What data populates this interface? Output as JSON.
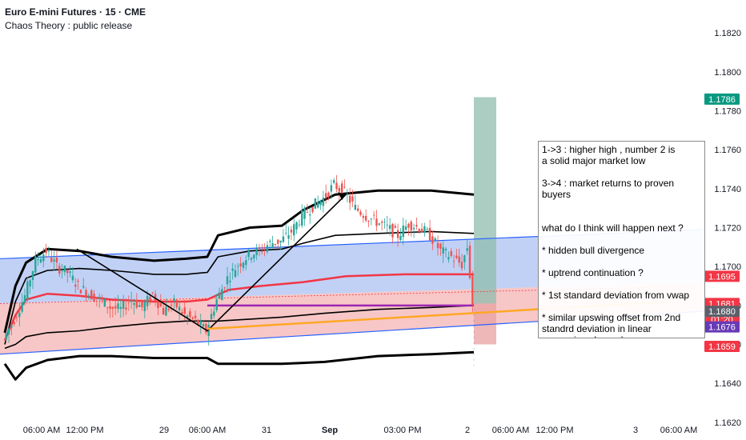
{
  "header": {
    "title": "Euro E-mini Futures · 15 · CME",
    "subtitle": "Chaos Theory : public release"
  },
  "colors": {
    "upper_channel_fill": "#9fb8f0",
    "lower_channel_fill": "#f2a9a9",
    "channel_line": "#2962ff",
    "vwap_red": "#f23645",
    "vwap_purple": "#9c27b0",
    "bands": "#000000",
    "trend_orange": "#ffa726",
    "projection": "#8fbcad",
    "candle_up": "#26a69a",
    "candle_down": "#ef5350"
  },
  "chart_data": {
    "type": "candlestick",
    "y_axis": {
      "ylim": [
        1.1615,
        1.1832
      ],
      "ticks": [
        "1.1820",
        "1.1800",
        "1.1780",
        "1.1760",
        "1.1740",
        "1.1720",
        "1.1700",
        "1.1680",
        "1.1660",
        "1.1640",
        "1.1620"
      ],
      "grid": false,
      "price_badges": [
        {
          "label": "1.1786",
          "value": 1.1786,
          "color": "#089981"
        },
        {
          "label": "1.1695",
          "value": 1.1695,
          "color": "#f23645"
        },
        {
          "label": "1.1681",
          "value": 1.1681,
          "color": "#f23645"
        },
        {
          "label": "01:20",
          "value": 1.1673,
          "color": "#f23645"
        },
        {
          "label": "1.1680",
          "value": 1.1677,
          "color": "#5d606b"
        },
        {
          "label": "1.1676",
          "value": 1.1669,
          "color": "#673ab7"
        },
        {
          "label": "1.1659",
          "value": 1.1659,
          "color": "#f23645"
        }
      ]
    },
    "x_axis": {
      "ticks": [
        "06:00 AM",
        "12:00 PM",
        "29",
        "06:00 AM",
        "31",
        "Sep",
        "03:00 PM",
        "2",
        "06:00 AM",
        "12:00 PM",
        "3",
        "06:00 AM"
      ],
      "bold": [
        "Sep"
      ]
    },
    "price_path": [
      [
        0,
        1.1663
      ],
      [
        4,
        1.1673
      ],
      [
        8,
        1.1685
      ],
      [
        12,
        1.1703
      ],
      [
        16,
        1.1708
      ],
      [
        20,
        1.17
      ],
      [
        24,
        1.1697
      ],
      [
        28,
        1.169
      ],
      [
        32,
        1.1686
      ],
      [
        36,
        1.1683
      ],
      [
        40,
        1.1679
      ],
      [
        44,
        1.1678
      ],
      [
        48,
        1.1683
      ],
      [
        52,
        1.1679
      ],
      [
        56,
        1.1686
      ],
      [
        60,
        1.1677
      ],
      [
        64,
        1.1681
      ],
      [
        68,
        1.1675
      ],
      [
        72,
        1.1672
      ],
      [
        76,
        1.1667
      ],
      [
        80,
        1.1683
      ],
      [
        84,
        1.1694
      ],
      [
        88,
        1.1701
      ],
      [
        92,
        1.1706
      ],
      [
        96,
        1.1708
      ],
      [
        100,
        1.1712
      ],
      [
        104,
        1.1713
      ],
      [
        108,
        1.1718
      ],
      [
        112,
        1.1726
      ],
      [
        116,
        1.1731
      ],
      [
        120,
        1.1735
      ],
      [
        124,
        1.1742
      ],
      [
        128,
        1.1738
      ],
      [
        132,
        1.173
      ],
      [
        136,
        1.1726
      ],
      [
        140,
        1.1723
      ],
      [
        144,
        1.172
      ],
      [
        148,
        1.1716
      ],
      [
        152,
        1.1722
      ],
      [
        156,
        1.172
      ],
      [
        160,
        1.1716
      ],
      [
        164,
        1.1708
      ],
      [
        168,
        1.1705
      ],
      [
        172,
        1.1701
      ],
      [
        174,
        1.171
      ],
      [
        176,
        1.1681
      ]
    ],
    "series": [
      {
        "name": "1",
        "values": [
          [
            0,
            1.168
          ]
        ]
      }
    ],
    "chart_labels": [],
    "annotations": {
      "note_lines": [
        "1->3 : higher high , number 2 is",
        "a solid major market low",
        "",
        "3->4 : market returns to proven",
        "buyers",
        "",
        "",
        "what do I think will happen next ?",
        "",
        "* hidden bull divergence",
        "",
        "* uptrend continuation ?",
        "",
        "* 1st standard deviation from vwap",
        "",
        "* similar upswing offset from 2nd",
        "standrd deviation in linear",
        "regression channel"
      ]
    }
  }
}
